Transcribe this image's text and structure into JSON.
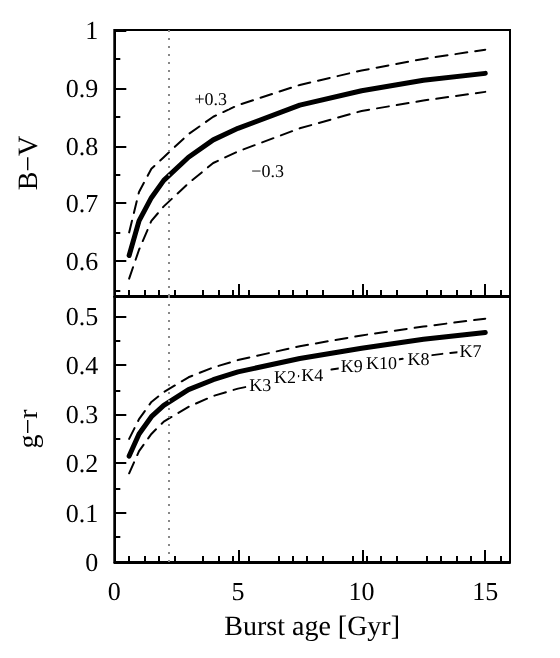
{
  "chart_data": [
    {
      "type": "line",
      "ylabel": "B−V",
      "xlim": [
        0,
        16
      ],
      "xticks": [
        0,
        5,
        10,
        15
      ],
      "ylim": [
        0.54,
        1.0
      ],
      "yticks": [
        0.6,
        0.7,
        0.8,
        0.9,
        1
      ],
      "tick_labels": "y",
      "grid": false,
      "marker": "none",
      "series": [
        {
          "color": "#000000",
          "line_style": "solid",
          "x": [
            0.6,
            1,
            1.5,
            2,
            3,
            4,
            5,
            7.5,
            10,
            12.5,
            15
          ],
          "values": [
            0.61,
            0.67,
            0.71,
            0.74,
            0.78,
            0.81,
            0.83,
            0.87,
            0.895,
            0.913,
            0.925
          ]
        },
        {
          "color": "#000000",
          "line_style": "dashed",
          "x": [
            0.6,
            1,
            1.5,
            2,
            3,
            4,
            5,
            7.5,
            10,
            12.5,
            15
          ],
          "values": [
            0.65,
            0.72,
            0.76,
            0.78,
            0.82,
            0.85,
            0.87,
            0.905,
            0.93,
            0.95,
            0.966
          ]
        },
        {
          "color": "#000000",
          "line_style": "dashed",
          "x": [
            0.6,
            1,
            1.5,
            2,
            3,
            4,
            5,
            7.5,
            10,
            12.5,
            15
          ],
          "values": [
            0.57,
            0.62,
            0.67,
            0.695,
            0.735,
            0.77,
            0.79,
            0.83,
            0.86,
            0.878,
            0.893
          ]
        }
      ],
      "ref_lines": [
        {
          "axis": "x",
          "value": 2.2,
          "label": null,
          "color": "#888888",
          "line_style": "dotted"
        }
      ],
      "annotations": [
        {
          "text": "+0.3",
          "x": 3.9,
          "y": 0.88
        },
        {
          "text": "−0.3",
          "x": 6.2,
          "y": 0.757
        }
      ]
    },
    {
      "type": "line",
      "xlabel": "Burst age [Gyr]",
      "ylabel": "g−r",
      "xlim": [
        0,
        16
      ],
      "xticks": [
        0,
        5,
        10,
        15
      ],
      "ylim": [
        0,
        0.54
      ],
      "yticks": [
        0,
        0.1,
        0.2,
        0.3,
        0.4,
        0.5
      ],
      "grid": false,
      "marker": "none",
      "series": [
        {
          "color": "#000000",
          "line_style": "solid",
          "x": [
            0.6,
            1,
            1.5,
            2,
            3,
            4,
            5,
            7.5,
            10,
            12.5,
            15
          ],
          "values": [
            0.215,
            0.26,
            0.295,
            0.318,
            0.35,
            0.37,
            0.386,
            0.413,
            0.434,
            0.452,
            0.466
          ]
        },
        {
          "color": "#000000",
          "line_style": "dashed",
          "x": [
            0.6,
            1,
            1.5,
            2,
            3,
            4,
            5,
            7.5,
            10,
            12.5,
            15
          ],
          "values": [
            0.25,
            0.29,
            0.325,
            0.345,
            0.375,
            0.395,
            0.41,
            0.438,
            0.46,
            0.478,
            0.494
          ]
        },
        {
          "color": "#000000",
          "line_style": "dashed",
          "x": [
            0.6,
            1,
            1.5,
            2,
            3,
            4,
            5,
            8.7,
            11.6,
            13.5,
            15
          ],
          "values": [
            0.18,
            0.225,
            0.26,
            0.285,
            0.315,
            0.337,
            0.352,
            0.39,
            0.412,
            0.424,
            0.432
          ]
        }
      ],
      "ref_lines": [
        {
          "axis": "x",
          "value": 2.2,
          "label": null,
          "color": "#888888",
          "line_style": "dotted"
        }
      ],
      "annotations": [
        {
          "text": "K3",
          "x": 5.9,
          "y": 0.36
        },
        {
          "text": "K2",
          "x": 6.9,
          "y": 0.375
        },
        {
          "text": "K4",
          "x": 8.0,
          "y": 0.38
        },
        {
          "text": "K9",
          "x": 9.6,
          "y": 0.398
        },
        {
          "text": "K10",
          "x": 10.8,
          "y": 0.405
        },
        {
          "text": "K8",
          "x": 12.3,
          "y": 0.413
        },
        {
          "text": "K7",
          "x": 14.4,
          "y": 0.428
        }
      ]
    }
  ]
}
